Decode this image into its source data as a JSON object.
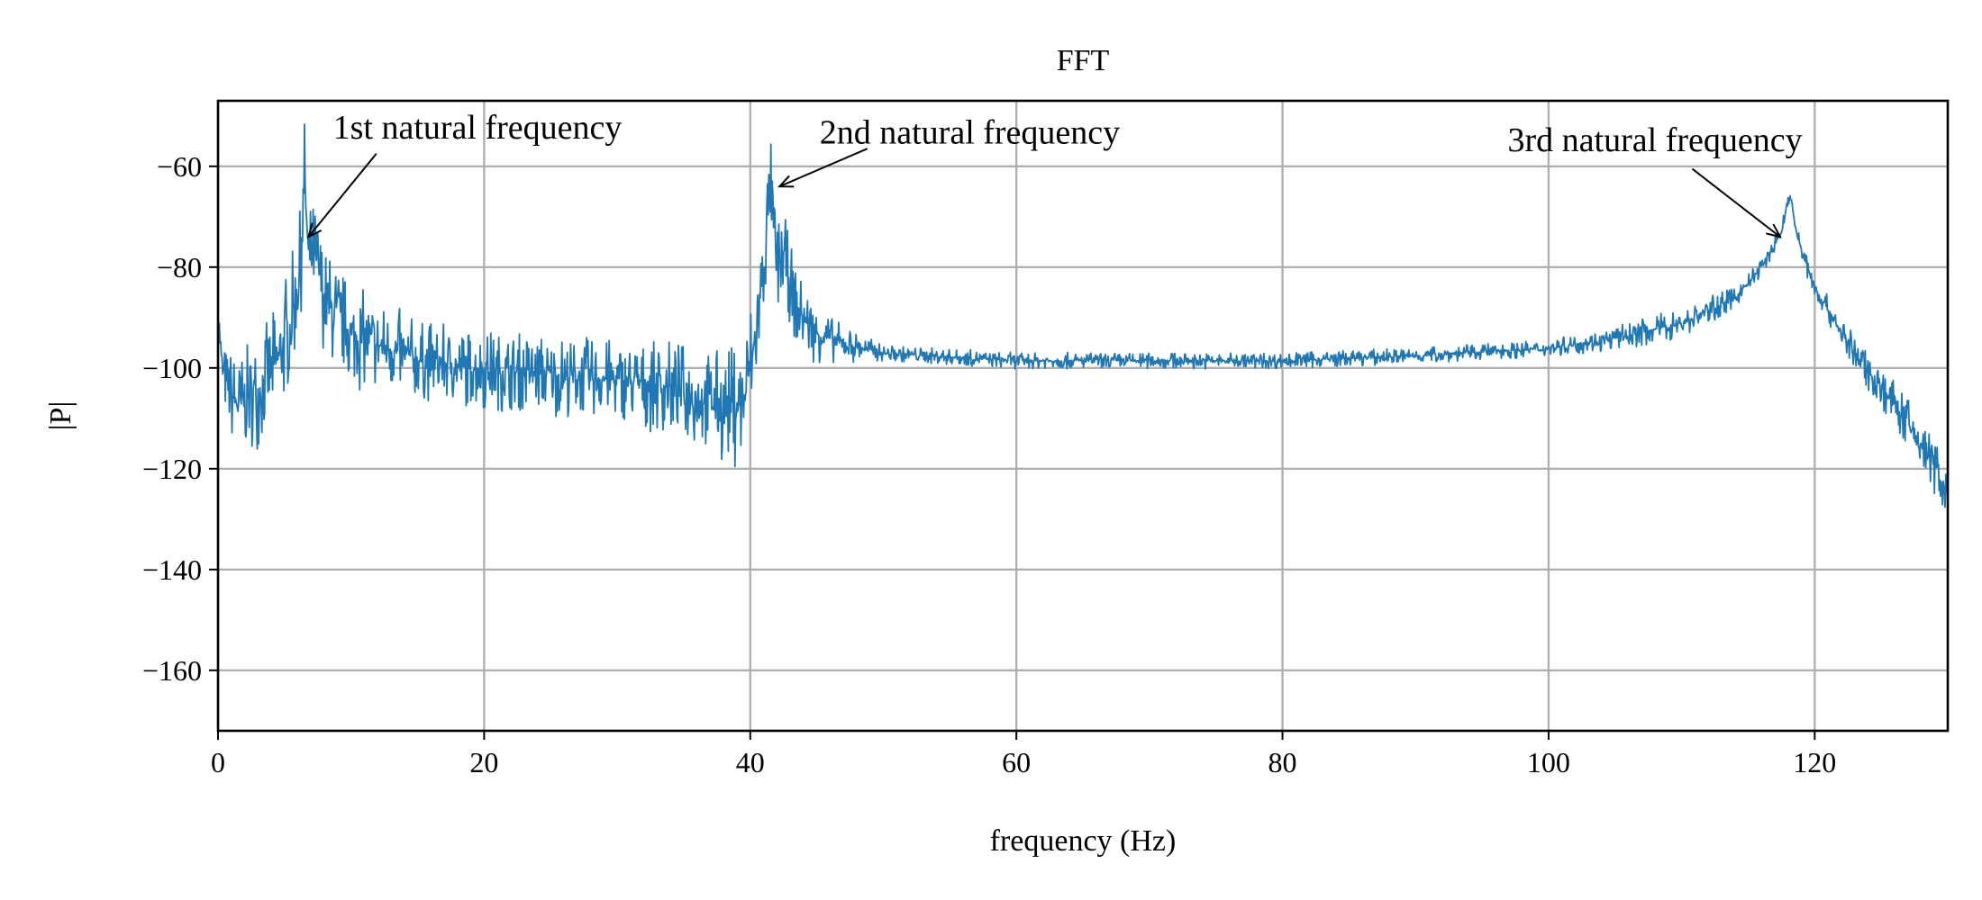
{
  "chart_data": {
    "type": "line",
    "title": "FFT",
    "xlabel": "frequency (Hz)",
    "ylabel": "|P|",
    "xlim": [
      0,
      130
    ],
    "ylim": [
      -172,
      -47
    ],
    "xticks": [
      0,
      20,
      40,
      60,
      80,
      100,
      120
    ],
    "yticks": [
      -60,
      -80,
      -100,
      -120,
      -140,
      -160
    ],
    "grid": true,
    "series_color": "#1f77b4",
    "series": [
      {
        "anchors": [
          [
            0,
            -88
          ],
          [
            0.3,
            -100
          ],
          [
            0.8,
            -104
          ],
          [
            1.5,
            -107
          ],
          [
            3,
            -104
          ],
          [
            4.5,
            -98
          ],
          [
            5.5,
            -90
          ],
          [
            6.2,
            -80
          ],
          [
            6.5,
            -61
          ],
          [
            6.8,
            -78
          ],
          [
            7.3,
            -77
          ],
          [
            8,
            -86
          ],
          [
            10,
            -93
          ],
          [
            15,
            -98
          ],
          [
            20,
            -100
          ],
          [
            25,
            -101
          ],
          [
            30,
            -102
          ],
          [
            35,
            -104
          ],
          [
            38,
            -107
          ],
          [
            39.5,
            -106
          ],
          [
            40.3,
            -95
          ],
          [
            41,
            -80
          ],
          [
            41.5,
            -63
          ],
          [
            42,
            -80
          ],
          [
            42.5,
            -77
          ],
          [
            43.5,
            -88
          ],
          [
            45,
            -93
          ],
          [
            47,
            -95
          ],
          [
            50,
            -97
          ],
          [
            60,
            -98.5
          ],
          [
            70,
            -98.5
          ],
          [
            80,
            -98.5
          ],
          [
            90,
            -97.5
          ],
          [
            100,
            -96
          ],
          [
            105,
            -94
          ],
          [
            110,
            -91
          ],
          [
            114,
            -86
          ],
          [
            116,
            -80
          ],
          [
            117.5,
            -73
          ],
          [
            118.1,
            -65
          ],
          [
            118.7,
            -74
          ],
          [
            120,
            -84
          ],
          [
            123,
            -97
          ],
          [
            126,
            -107
          ],
          [
            128,
            -115
          ],
          [
            129.5,
            -121
          ],
          [
            130,
            -128
          ]
        ],
        "noise": [
          [
            0,
            3
          ],
          [
            1,
            6
          ],
          [
            5,
            8
          ],
          [
            8,
            7
          ],
          [
            15,
            5
          ],
          [
            30,
            5
          ],
          [
            38,
            7
          ],
          [
            40,
            9
          ],
          [
            42,
            6
          ],
          [
            46,
            3
          ],
          [
            50,
            1
          ],
          [
            100,
            1
          ],
          [
            110,
            2
          ],
          [
            116,
            1
          ],
          [
            120,
            1.5
          ],
          [
            126,
            3
          ],
          [
            130,
            4
          ]
        ]
      }
    ],
    "annotations": [
      {
        "text": "1st natural frequency",
        "text_x": 19.5,
        "text_y": -54.5,
        "point_x": 6.8,
        "point_y": -74,
        "tail_x": 11.9,
        "tail_y": -57.5
      },
      {
        "text": "2nd natural frequency",
        "text_x": 56.5,
        "text_y": -55.5,
        "point_x": 42.2,
        "point_y": -64,
        "tail_x": 48.8,
        "tail_y": -56.5
      },
      {
        "text": "3rd natural frequency",
        "text_x": 108,
        "text_y": -57,
        "point_x": 117.4,
        "point_y": -74,
        "tail_x": 110.8,
        "tail_y": -60.5
      }
    ]
  }
}
